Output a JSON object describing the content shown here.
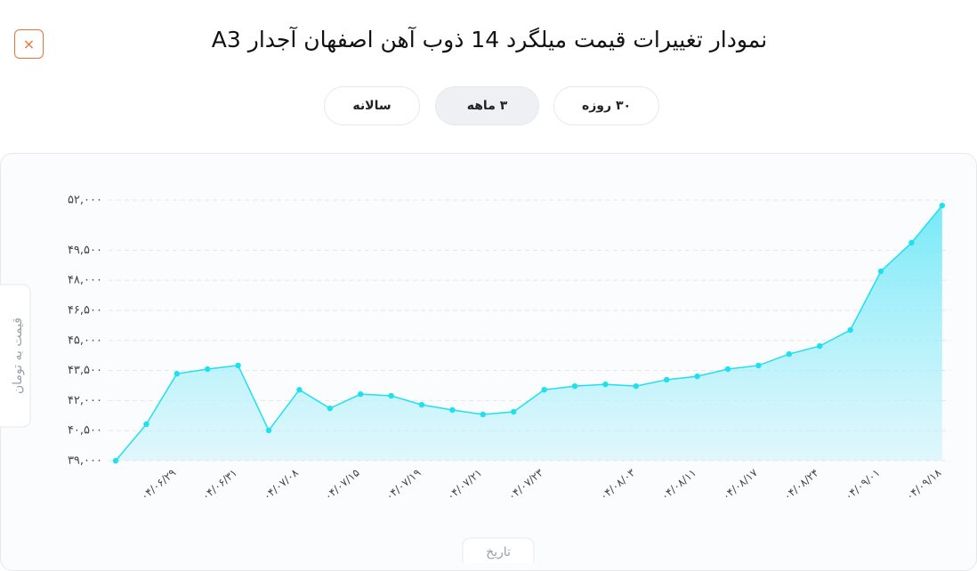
{
  "header": {
    "title": "نمودار تغییرات قیمت میلگرد 14 ذوب آهن اصفهان آجدار A3",
    "close": "×"
  },
  "tabs": [
    {
      "label": "۳۰ روزه",
      "active": false
    },
    {
      "label": "۳ ماهه",
      "active": true
    },
    {
      "label": "سالانه",
      "active": false
    }
  ],
  "chart_data": {
    "type": "area",
    "color": "#1fe0ee",
    "grid": true,
    "x_label": "تاریخ",
    "y_label": "قیمت به تومان",
    "categories": [
      null,
      null,
      "۰۴/۰۶/۲۹",
      null,
      "۰۴/۰۶/۳۱",
      null,
      "۰۴/۰۷/۰۸",
      null,
      "۰۴/۰۷/۱۵",
      null,
      "۰۴/۰۷/۱۹",
      null,
      "۰۴/۰۷/۲۱",
      null,
      "۰۴/۰۷/۲۳",
      null,
      null,
      "۰۴/۰۸/۰۳",
      null,
      "۰۴/۰۸/۱۱",
      null,
      "۰۴/۰۸/۱۷",
      null,
      "۰۴/۰۸/۲۴",
      null,
      "۰۴/۰۹/۰۱",
      null,
      "۰۴/۰۹/۱۸"
    ],
    "values": [
      39000,
      40820,
      43340,
      43570,
      43750,
      40510,
      42540,
      41610,
      42320,
      42240,
      41790,
      41530,
      41310,
      41440,
      42540,
      42720,
      42810,
      42720,
      43040,
      43210,
      43570,
      43750,
      44320,
      44720,
      45520,
      48450,
      49870,
      51730
    ],
    "ylim": [
      39000,
      52000
    ],
    "yticks": [
      {
        "value": 39000,
        "label": "۳۹,۰۰۰"
      },
      {
        "value": 40500,
        "label": "۴۰,۵۰۰"
      },
      {
        "value": 42000,
        "label": "۴۲,۰۰۰"
      },
      {
        "value": 43500,
        "label": "۴۳,۵۰۰"
      },
      {
        "value": 45000,
        "label": "۴۵,۰۰۰"
      },
      {
        "value": 46500,
        "label": "۴۶,۵۰۰"
      },
      {
        "value": 48000,
        "label": "۴۸,۰۰۰"
      },
      {
        "value": 49500,
        "label": "۴۹,۵۰۰"
      },
      {
        "value": 52000,
        "label": "۵۲,۰۰۰"
      }
    ]
  }
}
